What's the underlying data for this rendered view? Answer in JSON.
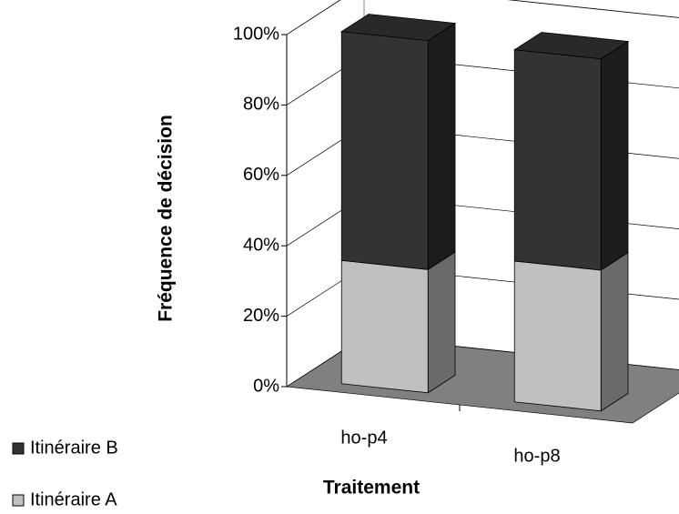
{
  "chart_data": {
    "type": "bar3d_stacked",
    "y_label": "Fréquence de décision",
    "x_label": "Traitement",
    "categories": [
      "ho-p4",
      "ho-p8"
    ],
    "series": [
      {
        "name": "Itinéraire A",
        "color": "#c0c0c0",
        "values": [
          35,
          40
        ]
      },
      {
        "name": "Itinéraire B",
        "color": "#333333",
        "values": [
          65,
          60
        ]
      }
    ],
    "ylim": [
      0,
      100
    ],
    "yticks": [
      {
        "value": 0,
        "label": "0%"
      },
      {
        "value": 20,
        "label": "20%"
      },
      {
        "value": 40,
        "label": "40%"
      },
      {
        "value": 60,
        "label": "60%"
      },
      {
        "value": 80,
        "label": "80%"
      },
      {
        "value": 100,
        "label": "100%"
      }
    ],
    "grid": true,
    "legend": "bottom-left"
  }
}
